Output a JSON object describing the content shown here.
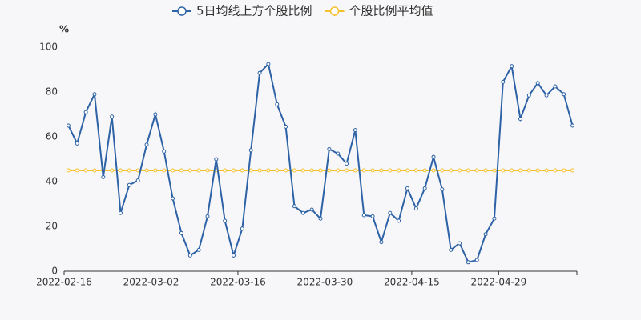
{
  "chart_data": {
    "type": "line",
    "y_label": "%",
    "categories": [
      "2022-02-16",
      null,
      null,
      null,
      null,
      null,
      null,
      null,
      null,
      null,
      "2022-03-02",
      null,
      null,
      null,
      null,
      null,
      null,
      null,
      null,
      null,
      "2022-03-16",
      null,
      null,
      null,
      null,
      null,
      null,
      null,
      null,
      null,
      "2022-03-30",
      null,
      null,
      null,
      null,
      null,
      null,
      null,
      null,
      null,
      "2022-04-15",
      null,
      null,
      null,
      null,
      null,
      null,
      null,
      null,
      null,
      "2022-04-29",
      null,
      null,
      null,
      null,
      null,
      null,
      null,
      null
    ],
    "series": [
      {
        "name": "5日均线上方个股比例",
        "color": "#2d62a6",
        "values": [
          65,
          57,
          71,
          79,
          42,
          69,
          26,
          38.5,
          40.5,
          56.5,
          70,
          53.5,
          32.5,
          17,
          7,
          9.5,
          24.5,
          50,
          22.5,
          7,
          19,
          54,
          88.5,
          92.5,
          74.5,
          64.5,
          29,
          26,
          27.5,
          23.5,
          54.5,
          52.5,
          48,
          63,
          25,
          24.5,
          13,
          26,
          22.5,
          37,
          28,
          37,
          51,
          36.5,
          9.5,
          12.5,
          4,
          5,
          16.5,
          23.5,
          84.5,
          91.5,
          68,
          78.5,
          84,
          78.5,
          82.5,
          79,
          65
        ]
      },
      {
        "name": "个股比例平均值",
        "color": "#f5c02e",
        "values": [
          45,
          45,
          45,
          45,
          45,
          45,
          45,
          45,
          45,
          45,
          45,
          45,
          45,
          45,
          45,
          45,
          45,
          45,
          45,
          45,
          45,
          45,
          45,
          45,
          45,
          45,
          45,
          45,
          45,
          45,
          45,
          45,
          45,
          45,
          45,
          45,
          45,
          45,
          45,
          45,
          45,
          45,
          45,
          45,
          45,
          45,
          45,
          45,
          45,
          45,
          45,
          45,
          45,
          45,
          45,
          45,
          45,
          45,
          45
        ]
      }
    ],
    "ylim": [
      0,
      100
    ],
    "yticks": [
      0,
      20,
      40,
      60,
      80,
      100
    ],
    "grid": false
  }
}
